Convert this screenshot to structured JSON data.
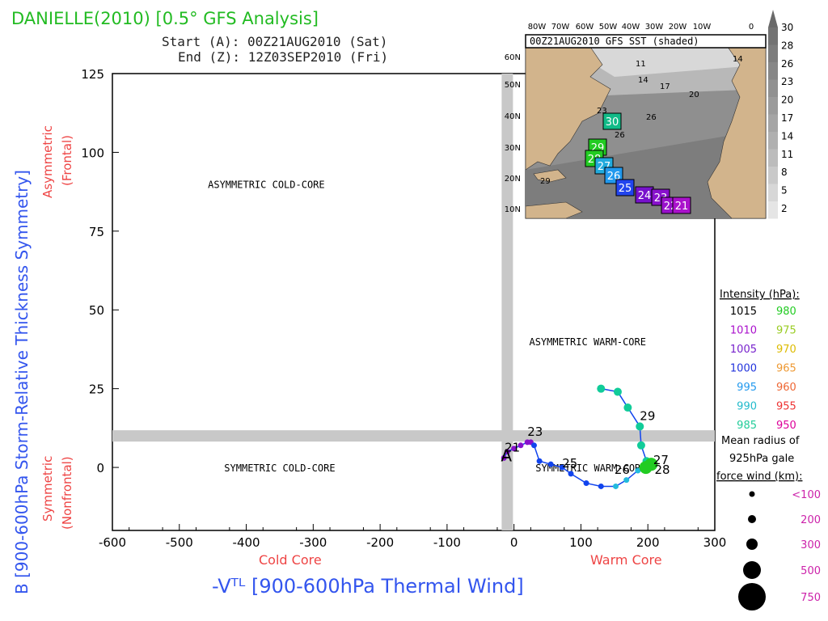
{
  "header": {
    "title": "DANIELLE(2010) [0.5° GFS Analysis]",
    "start": "Start (A): 00Z21AUG2010 (Sat)",
    "end": "End (Z): 12Z03SEP2010 (Fri)"
  },
  "colors": {
    "title": "#22bb22",
    "axis_blue": "#3355ee",
    "axis_red": "#ee4444",
    "guide_gray": "#c8c8c8",
    "land": "#d2b48c",
    "marker_purple": "#8811cc",
    "marker_blue": "#1144ee",
    "marker_cyan": "#22bbdd",
    "marker_teal": "#11cc99",
    "marker_green": "#22cc22"
  },
  "chart_data": {
    "type": "scatter",
    "xlabel": "-Vᵀᴸ [900-600hPa Thermal Wind]",
    "ylabel": "B [900-600hPa Storm-Relative Thickness Symmetry]",
    "x_range": [
      -600,
      300
    ],
    "y_range": [
      -20,
      125
    ],
    "x_ticks": [
      "-600",
      "-500",
      "-400",
      "-300",
      "-200",
      "-100",
      "0",
      "100",
      "200",
      "300"
    ],
    "y_ticks": [
      "0",
      "25",
      "50",
      "75",
      "100",
      "125"
    ],
    "x_sublabels": {
      "left": "Cold Core",
      "right": "Warm Core"
    },
    "y_sublabels": {
      "top": "Asymmetric",
      "top2": "(Frontal)",
      "bottom": "Symmetric",
      "bottom2": "(Nonfrontal)"
    },
    "thresholds": {
      "x": -10,
      "y": 10
    },
    "quadrants": {
      "top_left": "ASYMMETRIC COLD-CORE",
      "top_right": "ASYMMETRIC WARM-CORE",
      "bottom_left": "SYMMETRIC COLD-CORE",
      "bottom_right": "SYMMETRIC WARM-CORE"
    },
    "track": [
      {
        "x": -15,
        "y": 3,
        "c": "marker_purple"
      },
      {
        "x": -10,
        "y": 5,
        "c": "marker_purple"
      },
      {
        "x": 0,
        "y": 6,
        "c": "marker_purple"
      },
      {
        "x": 10,
        "y": 7,
        "c": "marker_purple"
      },
      {
        "x": 20,
        "y": 8,
        "c": "marker_purple"
      },
      {
        "x": 25,
        "y": 8,
        "c": "marker_purple"
      },
      {
        "x": 30,
        "y": 7,
        "c": "marker_blue"
      },
      {
        "x": 38,
        "y": 2,
        "c": "marker_blue"
      },
      {
        "x": 55,
        "y": 1,
        "c": "marker_blue"
      },
      {
        "x": 72,
        "y": 0,
        "c": "marker_blue"
      },
      {
        "x": 85,
        "y": -2,
        "c": "marker_blue"
      },
      {
        "x": 108,
        "y": -5,
        "c": "marker_blue"
      },
      {
        "x": 130,
        "y": -6,
        "c": "marker_blue"
      },
      {
        "x": 152,
        "y": -6,
        "c": "marker_cyan"
      },
      {
        "x": 168,
        "y": -4,
        "c": "marker_cyan"
      },
      {
        "x": 185,
        "y": -1,
        "c": "marker_cyan"
      },
      {
        "x": 195,
        "y": 1,
        "c": "marker_cyan"
      },
      {
        "x": 198,
        "y": 2,
        "c": "marker_teal"
      },
      {
        "x": 190,
        "y": 7,
        "c": "marker_teal"
      },
      {
        "x": 188,
        "y": 13,
        "c": "marker_teal"
      },
      {
        "x": 170,
        "y": 19,
        "c": "marker_teal"
      },
      {
        "x": 155,
        "y": 24,
        "c": "marker_teal"
      },
      {
        "x": 130,
        "y": 25,
        "c": "marker_teal"
      }
    ],
    "big_markers": [
      {
        "x": 197,
        "y": 0,
        "c": "marker_green"
      },
      {
        "x": 205,
        "y": 1,
        "c": "marker_green"
      }
    ],
    "day_labels": [
      {
        "label": "21",
        "x": -14,
        "y": 4
      },
      {
        "label": "23",
        "x": 20,
        "y": 9
      },
      {
        "label": "25",
        "x": 72,
        "y": -1
      },
      {
        "label": "26",
        "x": 150,
        "y": -3
      },
      {
        "label": "27",
        "x": 208,
        "y": 0
      },
      {
        "label": "28",
        "x": 210,
        "y": -3
      },
      {
        "label": "29",
        "x": 188,
        "y": 14
      }
    ],
    "start_marker": {
      "label": "A",
      "x": -10,
      "y": 4
    },
    "legend": {
      "intensity_title": "Intensity (hPa):",
      "intensity_left": [
        {
          "v": "1015",
          "c": "#000000"
        },
        {
          "v": "1010",
          "c": "#aa11cc"
        },
        {
          "v": "1005",
          "c": "#7722cc"
        },
        {
          "v": "1000",
          "c": "#2233dd"
        },
        {
          "v": "995",
          "c": "#2299ee"
        },
        {
          "v": "990",
          "c": "#22bbcc"
        },
        {
          "v": "985",
          "c": "#22cc99"
        }
      ],
      "intensity_right": [
        {
          "v": "980",
          "c": "#22cc22"
        },
        {
          "v": "975",
          "c": "#99cc22"
        },
        {
          "v": "970",
          "c": "#ddbb00"
        },
        {
          "v": "965",
          "c": "#ee9933"
        },
        {
          "v": "960",
          "c": "#ee6633"
        },
        {
          "v": "955",
          "c": "#ee3333"
        },
        {
          "v": "950",
          "c": "#dd0099"
        }
      ],
      "radius_title_1": "Mean radius of",
      "radius_title_2": "925hPa gale",
      "radius_title_3": "force wind (km):",
      "radius_values": [
        "<100",
        "200",
        "300",
        "500",
        "750"
      ]
    },
    "inset_map": {
      "title": "00Z21AUG2010 GFS SST (shaded)",
      "lon_labels": [
        "80W",
        "70W",
        "60W",
        "50W",
        "40W",
        "30W",
        "20W",
        "10W",
        "0"
      ],
      "lat_labels": [
        "60N",
        "50N",
        "40N",
        "30N",
        "20N",
        "10N"
      ],
      "colorbar": [
        "30",
        "28",
        "26",
        "23",
        "20",
        "17",
        "14",
        "11",
        "8",
        "5",
        "2"
      ],
      "contour_labels": [
        "11",
        "14",
        "17",
        "20",
        "14",
        "26",
        "23",
        "26",
        "29"
      ],
      "track_boxes": [
        {
          "label": "30",
          "c": "#11bb88"
        },
        {
          "label": "29",
          "c": "#22cc22"
        },
        {
          "label": "28",
          "c": "#22cc22"
        },
        {
          "label": "27",
          "c": "#22aadd"
        },
        {
          "label": "26",
          "c": "#2299ee"
        },
        {
          "label": "25",
          "c": "#2244ee"
        },
        {
          "label": "24",
          "c": "#7711cc"
        },
        {
          "label": "23",
          "c": "#8811cc"
        },
        {
          "label": "22",
          "c": "#9911cc"
        },
        {
          "label": "21",
          "c": "#aa11cc"
        }
      ]
    }
  }
}
